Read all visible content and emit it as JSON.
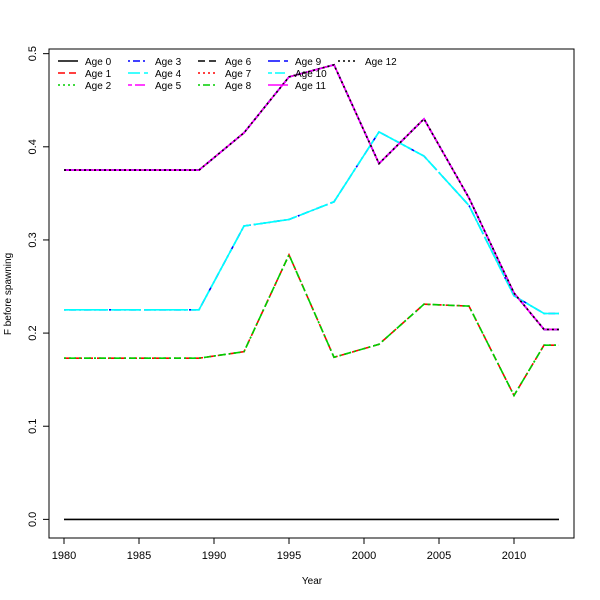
{
  "chart_data": {
    "type": "line",
    "xlabel": "Year",
    "ylabel": "F before spawning",
    "xlim": [
      1979,
      2014
    ],
    "ylim": [
      -0.02,
      0.505
    ],
    "xticks": [
      "1980",
      "1985",
      "1990",
      "1995",
      "2000",
      "2005",
      "2010"
    ],
    "yticks": [
      "0.0",
      "0.1",
      "0.2",
      "0.3",
      "0.4",
      "0.5"
    ],
    "grid": false,
    "legend_position": "top-left",
    "series": [
      {
        "name": "Age 0",
        "color": "#000000",
        "dash": "solid",
        "x": [
          1980,
          2013
        ],
        "y": [
          0,
          0
        ]
      },
      {
        "name": "Age 1",
        "color": "#ff0000",
        "dash": "dash",
        "x": [
          1980,
          1989,
          1992,
          1995,
          1998,
          2001,
          2004,
          2007,
          2010,
          2012,
          2013
        ],
        "y": [
          0.173,
          0.173,
          0.18,
          0.284,
          0.174,
          0.188,
          0.231,
          0.229,
          0.133,
          0.187,
          0.187
        ]
      },
      {
        "name": "Age 2",
        "color": "#00cd00",
        "dash": "dot",
        "x": [
          1980,
          1989,
          1992,
          1995,
          1998,
          2001,
          2004,
          2007,
          2010,
          2012,
          2013
        ],
        "y": [
          0.173,
          0.173,
          0.18,
          0.284,
          0.174,
          0.188,
          0.231,
          0.229,
          0.133,
          0.187,
          0.187
        ]
      },
      {
        "name": "Age 3",
        "color": "#0000ff",
        "dash": "dotdash",
        "x": [
          1980,
          1989,
          1992,
          1995,
          1998,
          2001,
          2004,
          2007,
          2010,
          2012,
          2013
        ],
        "y": [
          0.225,
          0.225,
          0.315,
          0.322,
          0.341,
          0.416,
          0.39,
          0.337,
          0.24,
          0.221,
          0.221
        ]
      },
      {
        "name": "Age 4",
        "color": "#00ffff",
        "dash": "longdash",
        "x": [
          1980,
          1989,
          1992,
          1995,
          1998,
          2001,
          2004,
          2007,
          2010,
          2012,
          2013
        ],
        "y": [
          0.225,
          0.225,
          0.315,
          0.322,
          0.341,
          0.416,
          0.39,
          0.337,
          0.24,
          0.221,
          0.221
        ]
      },
      {
        "name": "Age 5",
        "color": "#ff00ff",
        "dash": "twodash",
        "x": [
          1980,
          1989,
          1992,
          1995,
          1998,
          2001,
          2004,
          2007,
          2010,
          2012,
          2013
        ],
        "y": [
          0.375,
          0.375,
          0.415,
          0.475,
          0.488,
          0.382,
          0.43,
          0.345,
          0.243,
          0.204,
          0.204
        ]
      },
      {
        "name": "Age 6",
        "color": "#000000",
        "dash": "dash",
        "x": [
          1980,
          1989,
          1992,
          1995,
          1998,
          2001,
          2004,
          2007,
          2010,
          2012,
          2013
        ],
        "y": [
          0.375,
          0.375,
          0.415,
          0.475,
          0.488,
          0.382,
          0.43,
          0.345,
          0.243,
          0.204,
          0.204
        ]
      },
      {
        "name": "Age 7",
        "color": "#ff0000",
        "dash": "dot",
        "x": [
          1980,
          1989,
          1992,
          1995,
          1998,
          2001,
          2004,
          2007,
          2010,
          2012,
          2013
        ],
        "y": [
          0.375,
          0.375,
          0.415,
          0.475,
          0.488,
          0.382,
          0.43,
          0.345,
          0.243,
          0.204,
          0.204
        ]
      },
      {
        "name": "Age 8",
        "color": "#00cd00",
        "dash": "dotdash",
        "x": [
          1980,
          1989,
          1992,
          1995,
          1998,
          2001,
          2004,
          2007,
          2010,
          2012,
          2013
        ],
        "y": [
          0.173,
          0.173,
          0.18,
          0.284,
          0.174,
          0.188,
          0.231,
          0.229,
          0.133,
          0.187,
          0.187
        ]
      },
      {
        "name": "Age 9",
        "color": "#0000ff",
        "dash": "longdash",
        "x": [
          1980,
          1989,
          1992,
          1995,
          1998,
          2001,
          2004,
          2007,
          2010,
          2012,
          2013
        ],
        "y": [
          0.375,
          0.375,
          0.415,
          0.475,
          0.488,
          0.382,
          0.43,
          0.345,
          0.243,
          0.204,
          0.204
        ]
      },
      {
        "name": "Age 10",
        "color": "#00ffff",
        "dash": "twodash",
        "x": [
          1980,
          1989,
          1992,
          1995,
          1998,
          2001,
          2004,
          2007,
          2010,
          2012,
          2013
        ],
        "y": [
          0.225,
          0.225,
          0.315,
          0.322,
          0.341,
          0.416,
          0.39,
          0.337,
          0.24,
          0.221,
          0.221
        ]
      },
      {
        "name": "Age 11",
        "color": "#ff00ff",
        "dash": "solid",
        "x": [
          1980,
          1989,
          1992,
          1995,
          1998,
          2001,
          2004,
          2007,
          2010,
          2012,
          2013
        ],
        "y": [
          0.375,
          0.375,
          0.415,
          0.475,
          0.488,
          0.382,
          0.43,
          0.345,
          0.243,
          0.204,
          0.204
        ]
      },
      {
        "name": "Age 12",
        "color": "#000000",
        "dash": "dot",
        "x": [
          1980,
          1989,
          1992,
          1995,
          1998,
          2001,
          2004,
          2007,
          2010,
          2012,
          2013
        ],
        "y": [
          0.375,
          0.375,
          0.415,
          0.475,
          0.488,
          0.382,
          0.43,
          0.345,
          0.243,
          0.204,
          0.204
        ]
      }
    ]
  }
}
